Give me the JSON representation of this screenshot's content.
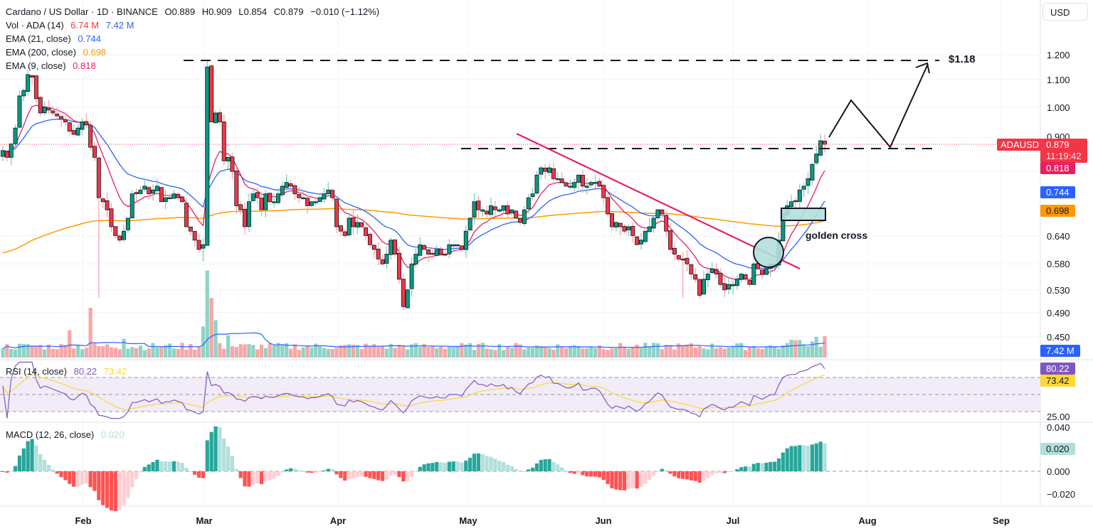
{
  "header": {
    "title": "Cardano / US Dollar · 1D · BINANCE",
    "open": "O0.889",
    "high": "H0.909",
    "low": "L0.854",
    "close": "C0.879",
    "change": "−0.010 (−1.12%)"
  },
  "indicators": {
    "vol": {
      "label": "Vol · ADA (14)",
      "value1": "6.74 M",
      "value2": "7.42 M"
    },
    "ema21": {
      "label": "EMA (21, close)",
      "value": "0.744"
    },
    "ema200": {
      "label": "EMA (200, close)",
      "value": "0.698"
    },
    "ema9": {
      "label": "EMA (9, close)",
      "value": "0.818"
    },
    "rsi": {
      "label": "RSI (14, close)",
      "value1": "80.22",
      "value2": "73.42"
    },
    "macd": {
      "label": "MACD (12, 26, close)",
      "value": "0.020"
    }
  },
  "currency_button": "USD",
  "price_axis": {
    "ticks": [
      "1.200",
      "1.100",
      "1.000",
      "0.900",
      "0.800",
      "0.640",
      "0.580",
      "0.530",
      "0.490",
      "0.450"
    ]
  },
  "rsi_axis": {
    "ticks": [
      "25.00"
    ]
  },
  "macd_axis": {
    "ticks": [
      "0.040",
      "0.000",
      "−0.020"
    ]
  },
  "tags": {
    "symbol": "ADAUSD",
    "last_price": "0.879",
    "countdown": "11:19:42",
    "ema9": "0.818",
    "ema21": "0.744",
    "ema200": "0.698",
    "volume_ma": "7.42 M",
    "rsi": "80.22",
    "rsi_ma": "73.42",
    "macd": "0.020"
  },
  "time_axis": {
    "labels": [
      "Feb",
      "Mar",
      "Apr",
      "May",
      "Jun",
      "Jul",
      "Aug",
      "Sep"
    ]
  },
  "annotations": {
    "target_label": "$1.18",
    "golden_cross_label": "golden cross"
  },
  "colors": {
    "up": "#089981",
    "down": "#f23645",
    "ema9": "#e91e63",
    "ema21": "#2962ff",
    "ema200": "#ff9800",
    "rsi": "#7e57c2",
    "rsi_ma": "#fdd835",
    "trendline": "#e91e63"
  },
  "chart_data": {
    "type": "candlestick",
    "title": "Cardano / US Dollar · 1D · BINANCE",
    "symbol": "ADAUSD",
    "timeframe": "1D",
    "xlabel": "",
    "ylabel": "USD",
    "y_scale": "log",
    "ylim": [
      0.43,
      1.25
    ],
    "x_ticks": [
      "Feb",
      "Mar",
      "Apr",
      "May",
      "Jun",
      "Jul",
      "Aug",
      "Sep"
    ],
    "y_ticks": [
      1.2,
      1.1,
      1.0,
      0.9,
      0.8,
      0.64,
      0.58,
      0.53,
      0.49,
      0.45
    ],
    "last_ohlc": {
      "open": 0.889,
      "high": 0.909,
      "low": 0.854,
      "close": 0.879,
      "change": -0.01,
      "change_pct": -1.12
    },
    "closes_approx": [
      0.86,
      0.84,
      0.88,
      0.93,
      1.04,
      1.06,
      1.12,
      1.11,
      1.03,
      0.98,
      1.0,
      0.99,
      0.98,
      0.97,
      0.96,
      0.95,
      0.92,
      0.91,
      0.93,
      0.95,
      0.94,
      0.87,
      0.84,
      0.73,
      0.72,
      0.7,
      0.66,
      0.64,
      0.63,
      0.65,
      0.68,
      0.74,
      0.74,
      0.75,
      0.76,
      0.74,
      0.75,
      0.76,
      0.72,
      0.73,
      0.73,
      0.74,
      0.73,
      0.72,
      0.66,
      0.65,
      0.63,
      0.61,
      0.62,
      1.15,
      0.95,
      0.98,
      0.95,
      0.83,
      0.84,
      0.8,
      0.71,
      0.7,
      0.66,
      0.72,
      0.74,
      0.73,
      0.7,
      0.74,
      0.72,
      0.72,
      0.74,
      0.76,
      0.77,
      0.76,
      0.74,
      0.73,
      0.73,
      0.71,
      0.72,
      0.72,
      0.73,
      0.74,
      0.75,
      0.73,
      0.66,
      0.65,
      0.64,
      0.68,
      0.66,
      0.67,
      0.66,
      0.64,
      0.62,
      0.61,
      0.59,
      0.58,
      0.6,
      0.63,
      0.6,
      0.55,
      0.5,
      0.53,
      0.58,
      0.6,
      0.62,
      0.61,
      0.6,
      0.6,
      0.61,
      0.6,
      0.6,
      0.62,
      0.62,
      0.62,
      0.61,
      0.65,
      0.68,
      0.72,
      0.7,
      0.7,
      0.69,
      0.71,
      0.7,
      0.7,
      0.71,
      0.69,
      0.7,
      0.68,
      0.67,
      0.7,
      0.73,
      0.74,
      0.79,
      0.81,
      0.8,
      0.81,
      0.78,
      0.78,
      0.77,
      0.76,
      0.76,
      0.77,
      0.79,
      0.76,
      0.76,
      0.77,
      0.77,
      0.76,
      0.73,
      0.69,
      0.66,
      0.67,
      0.66,
      0.65,
      0.66,
      0.64,
      0.62,
      0.63,
      0.65,
      0.66,
      0.68,
      0.7,
      0.69,
      0.65,
      0.61,
      0.6,
      0.59,
      0.59,
      0.58,
      0.56,
      0.55,
      0.52,
      0.55,
      0.56,
      0.57,
      0.56,
      0.54,
      0.53,
      0.54,
      0.54,
      0.55,
      0.56,
      0.55,
      0.54,
      0.58,
      0.57,
      0.56,
      0.57,
      0.58,
      0.58,
      0.63,
      0.69,
      0.71,
      0.72,
      0.72,
      0.75,
      0.76,
      0.78,
      0.82,
      0.85,
      0.89,
      0.879
    ],
    "target_price": 1.18,
    "support_resistance_level": 0.86,
    "series": [
      {
        "name": "EMA (9, close)",
        "last": 0.818
      },
      {
        "name": "EMA (21, close)",
        "last": 0.744
      },
      {
        "name": "EMA (200, close)",
        "last": 0.698
      },
      {
        "name": "Vol · ADA (14)",
        "last": 6.74,
        "ma": 7.42,
        "unit": "M"
      },
      {
        "name": "RSI (14, close)",
        "last": 80.22,
        "ma": 73.42,
        "bands": [
          70,
          50,
          30
        ]
      },
      {
        "name": "MACD histogram (12, 26, close)",
        "last": 0.02
      }
    ],
    "annotations": [
      "Horizontal dashed line at $1.18",
      "Horizontal dashed support ~0.86",
      "Descending trendline from May to July (broken)",
      "Golden cross circled early July",
      "Projected zig-zag path to $1.18"
    ]
  }
}
